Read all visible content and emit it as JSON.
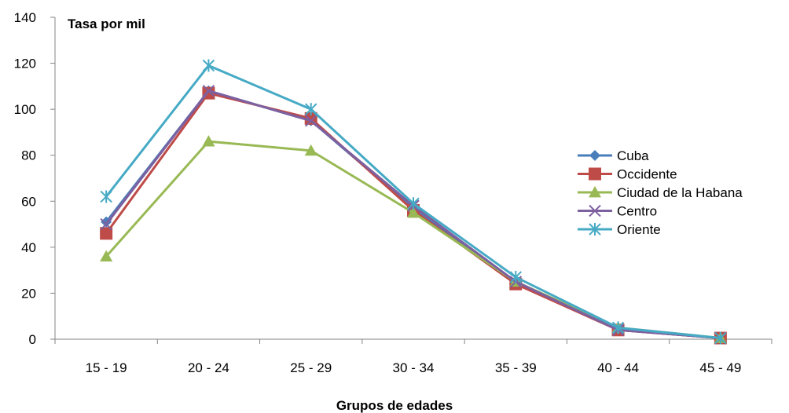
{
  "chart_data": {
    "type": "line",
    "title": "",
    "ylabel": "Tasa por mil",
    "xlabel": "Grupos de edades",
    "ylim": [
      0,
      140
    ],
    "yticks": [
      "0",
      "20",
      "40",
      "60",
      "80",
      "100",
      "120",
      "140"
    ],
    "categories": [
      "15 - 19",
      "20 - 24",
      "25 - 29",
      "30 - 34",
      "35 - 39",
      "40 - 44",
      "45 - 49"
    ],
    "grid": false,
    "legend_position": "right",
    "series": [
      {
        "name": "Cuba",
        "color": "#4a7ebb",
        "marker": "diamond",
        "values": [
          51,
          108,
          95,
          57,
          25,
          4,
          0.5
        ]
      },
      {
        "name": "Occidente",
        "color": "#be4b48",
        "marker": "square",
        "values": [
          46,
          107,
          96,
          56,
          24,
          4,
          0.5
        ]
      },
      {
        "name": "Ciudad de la Habana",
        "color": "#98b954",
        "marker": "triangle",
        "values": [
          36,
          86,
          82,
          55,
          25,
          5,
          0.5
        ]
      },
      {
        "name": "Centro",
        "color": "#7d60a0",
        "marker": "x",
        "values": [
          50,
          108,
          95,
          58,
          25,
          4,
          0.5
        ]
      },
      {
        "name": "Oriente",
        "color": "#46aac5",
        "marker": "star",
        "values": [
          62,
          119,
          100,
          59,
          27,
          5,
          0.5
        ]
      }
    ]
  }
}
